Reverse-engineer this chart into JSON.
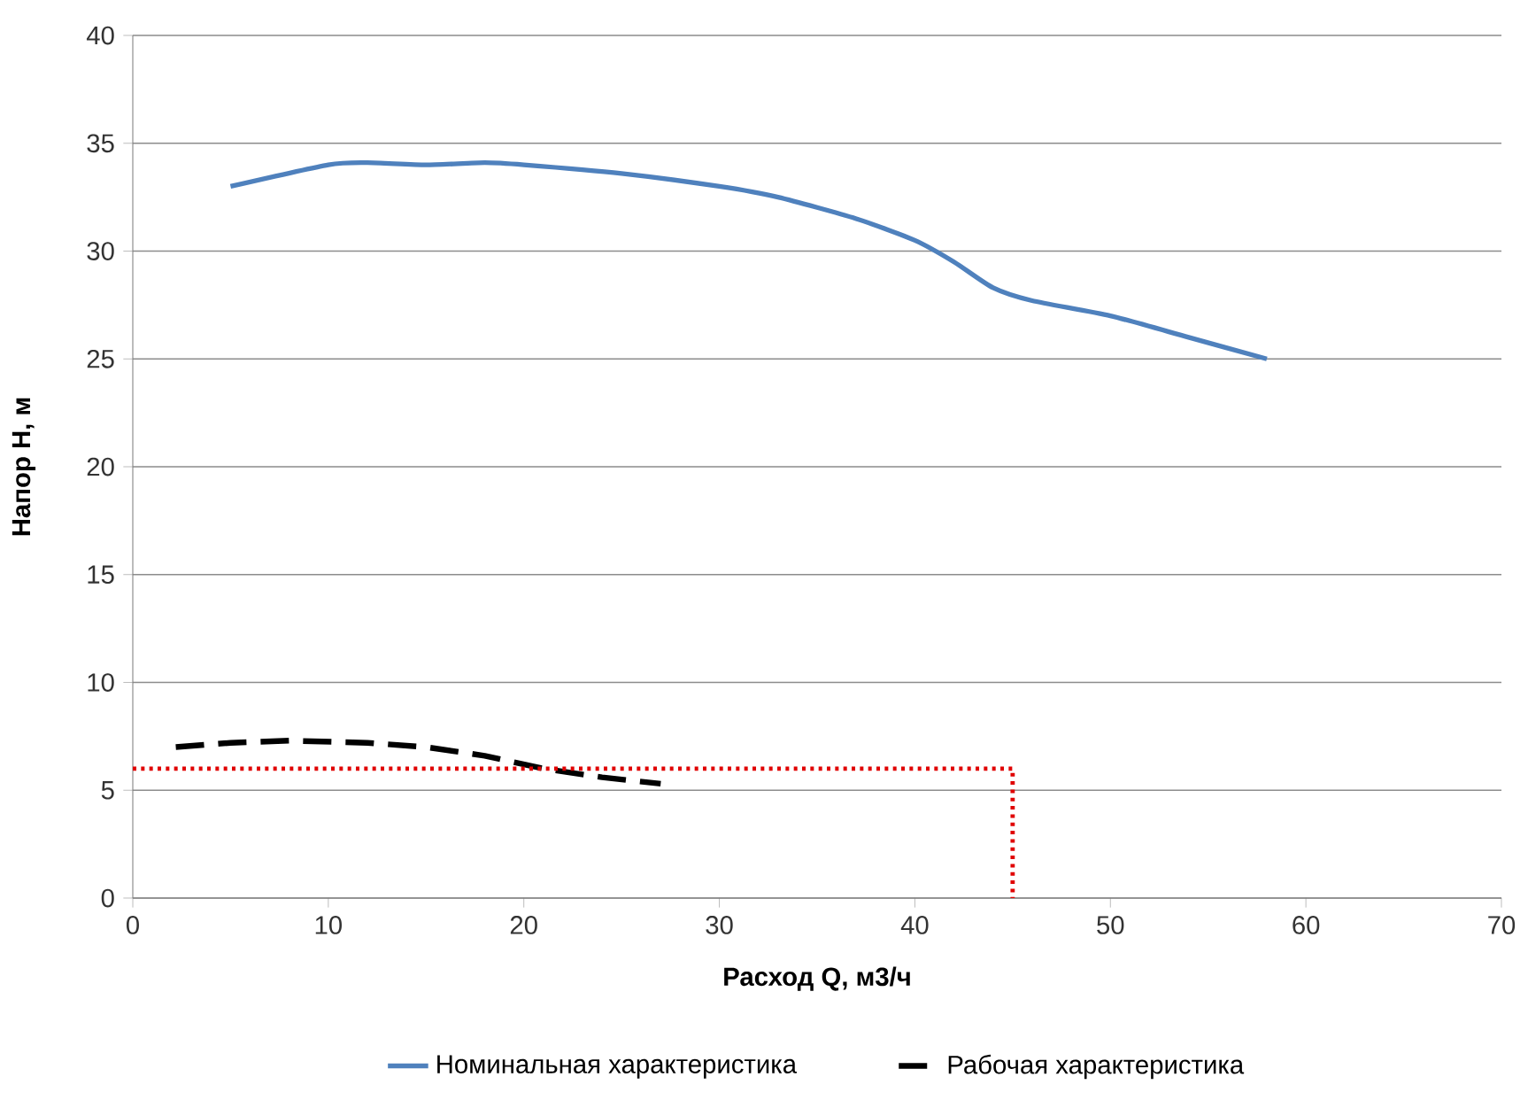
{
  "chart_data": {
    "type": "line",
    "xlabel": "Расход Q, м3/ч",
    "ylabel": "Напор Н, м",
    "xlim": [
      0,
      70
    ],
    "ylim": [
      0,
      40
    ],
    "xticks": [
      0,
      10,
      20,
      30,
      40,
      50,
      60,
      70
    ],
    "yticks": [
      0,
      5,
      10,
      15,
      20,
      25,
      30,
      35,
      40
    ],
    "grid": "y",
    "legend": "bottom",
    "series": [
      {
        "name": "Номинальная характеристика",
        "color": "#4f81bd",
        "line_style": "solid",
        "x": [
          5,
          10,
          12,
          15,
          18,
          20,
          25,
          30,
          33,
          37,
          40,
          42,
          44,
          46,
          50,
          54,
          58
        ],
        "values": [
          33,
          34,
          34.1,
          34,
          34.1,
          34,
          33.6,
          33,
          32.5,
          31.5,
          30.5,
          29.5,
          28.3,
          27.7,
          27,
          26,
          25
        ]
      },
      {
        "name": "Рабочая характеристика",
        "color": "#000000",
        "line_style": "dashed",
        "x": [
          2.2,
          5,
          8,
          12,
          15,
          18,
          21,
          24,
          27
        ],
        "values": [
          7,
          7.2,
          7.3,
          7.2,
          7,
          6.6,
          6,
          5.6,
          5.3
        ]
      },
      {
        "color": "#e00000",
        "line_style": "dotted",
        "x": [
          0,
          45,
          45
        ],
        "values": [
          6,
          6,
          0
        ]
      }
    ]
  }
}
